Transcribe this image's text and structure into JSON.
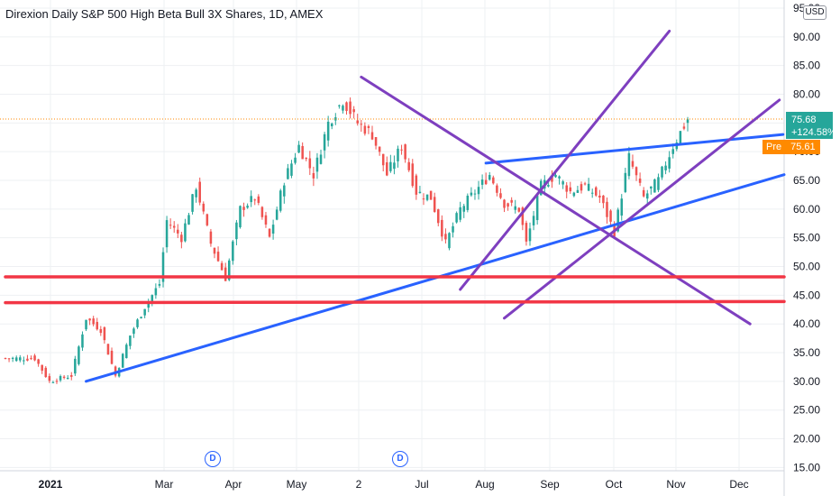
{
  "header": {
    "title": "Direxion Daily S&P 500 High Beta Bull 3X Shares, 1D, AMEX",
    "currency": "USD"
  },
  "last_price": {
    "value": "75.68",
    "change": "+124.58%"
  },
  "premarket": {
    "label": "Pre",
    "value": "75.61"
  },
  "dividend_badges": [
    "D",
    "D"
  ],
  "colors": {
    "up": "#26a69a",
    "down": "#ef5350",
    "trend_blue": "#2962ff",
    "trend_purple": "#7e3fbf",
    "support_red": "#f23645",
    "grid": "#eef0f3",
    "premarket": "#ff8a00"
  },
  "chart_data": {
    "type": "candlestick",
    "x_ticks": [
      "2021",
      "Mar",
      "Apr",
      "May",
      "2",
      "Jul",
      "Aug",
      "Sep",
      "Oct",
      "Nov",
      "Dec"
    ],
    "y_ticks": [
      "95.00",
      "90.00",
      "85.00",
      "80.00",
      "75.00",
      "70.00",
      "65.00",
      "60.00",
      "55.00",
      "50.00",
      "45.00",
      "40.00",
      "35.00",
      "30.00",
      "25.00",
      "20.00",
      "15.00"
    ],
    "ylim": [
      15,
      96
    ],
    "grid": true,
    "price_path": [
      [
        0,
        34
      ],
      [
        8,
        34
      ],
      [
        12,
        30
      ],
      [
        18,
        31
      ],
      [
        22,
        41
      ],
      [
        26,
        39
      ],
      [
        30,
        31
      ],
      [
        34,
        38
      ],
      [
        38,
        43
      ],
      [
        42,
        47
      ],
      [
        44,
        58
      ],
      [
        48,
        55
      ],
      [
        52,
        64
      ],
      [
        56,
        54
      ],
      [
        60,
        48
      ],
      [
        64,
        60
      ],
      [
        68,
        62
      ],
      [
        72,
        55
      ],
      [
        76,
        65
      ],
      [
        80,
        71
      ],
      [
        84,
        66
      ],
      [
        88,
        75
      ],
      [
        92,
        79
      ],
      [
        96,
        75
      ],
      [
        100,
        73
      ],
      [
        104,
        66
      ],
      [
        108,
        71
      ],
      [
        112,
        63
      ],
      [
        116,
        62
      ],
      [
        120,
        54
      ],
      [
        124,
        60
      ],
      [
        128,
        63
      ],
      [
        132,
        66
      ],
      [
        136,
        61
      ],
      [
        140,
        60
      ],
      [
        142,
        54
      ],
      [
        146,
        64
      ],
      [
        150,
        66
      ],
      [
        154,
        63
      ],
      [
        158,
        64
      ],
      [
        162,
        62
      ],
      [
        166,
        56
      ],
      [
        170,
        69
      ],
      [
        174,
        62
      ],
      [
        178,
        65
      ],
      [
        182,
        71
      ],
      [
        186,
        75.68
      ]
    ],
    "trendlines": [
      {
        "color": "blue",
        "from": [
          22,
          30
        ],
        "to": [
          225,
          66
        ]
      },
      {
        "color": "blue",
        "from": [
          131,
          68
        ],
        "to": [
          212,
          73
        ]
      },
      {
        "color": "purple",
        "from": [
          97,
          83
        ],
        "to": [
          203,
          40
        ]
      },
      {
        "color": "purple",
        "from": [
          124,
          46
        ],
        "to": [
          181,
          91
        ]
      },
      {
        "color": "purple",
        "from": [
          136,
          41
        ],
        "to": [
          211,
          79
        ]
      },
      {
        "color": "red",
        "from": [
          0,
          48.2
        ],
        "to": [
          225,
          48.2
        ]
      },
      {
        "color": "red",
        "from": [
          0,
          43.7
        ],
        "to": [
          219,
          43.9
        ]
      }
    ],
    "last_price_line": 75.68
  }
}
